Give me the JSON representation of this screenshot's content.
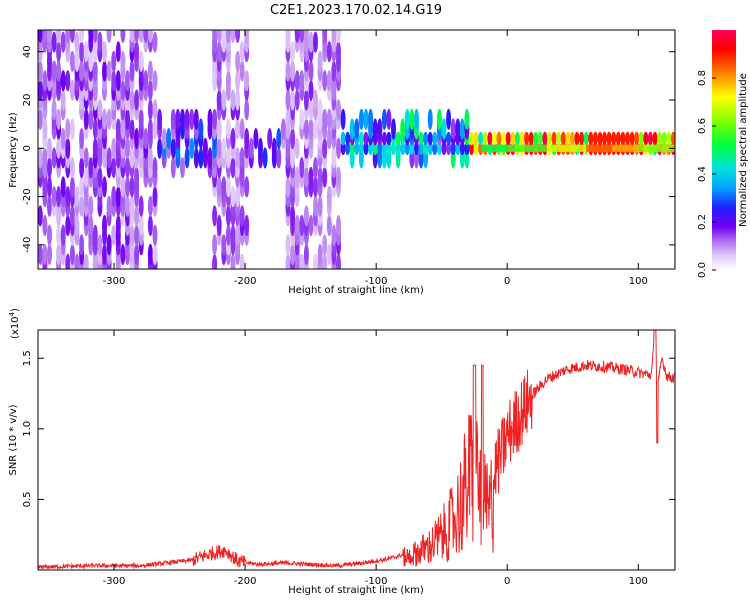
{
  "title": "C2E1.2023.170.02.14.G19",
  "chart_data": [
    {
      "type": "heatmap",
      "xlabel": "Height of straight line (km)",
      "ylabel": "Frequency (Hz)",
      "xlim": [
        -358,
        128
      ],
      "ylim": [
        -50,
        49
      ],
      "xticks": [
        -300,
        -200,
        -100,
        0,
        100
      ],
      "yticks": [
        -40,
        -20,
        0,
        20,
        40
      ],
      "colorbar": {
        "label": "Normalized spectral amplitude",
        "range": [
          0.0,
          1.0
        ],
        "ticks": [
          "0.0",
          "0.2",
          "0.4",
          "0.6",
          "0.8"
        ],
        "tick_values": [
          0.0,
          0.2,
          0.4,
          0.6,
          0.8
        ],
        "colormap": [
          "#ffffff",
          "#e0c8f8",
          "#b070f0",
          "#7000f0",
          "#2020ff",
          "#00a0ff",
          "#00e0e0",
          "#00ff40",
          "#80ff00",
          "#ffff00",
          "#ff8000",
          "#ff0000",
          "#ff0060"
        ]
      },
      "description_series": [
        {
          "x": [
            -358,
            -270
          ],
          "y_range": [
            -50,
            49
          ],
          "level": 0.2
        },
        {
          "x": [
            -270,
            -225
          ],
          "y_range": [
            -10,
            12
          ],
          "level": 0.32
        },
        {
          "x": [
            -225,
            -200
          ],
          "y_range": [
            -50,
            49
          ],
          "level": 0.18
        },
        {
          "x": [
            -200,
            -170
          ],
          "y_range": [
            -8,
            8
          ],
          "level": 0.3
        },
        {
          "x": [
            -170,
            -130
          ],
          "y_range": [
            -50,
            49
          ],
          "level": 0.18
        },
        {
          "x": [
            -130,
            -30
          ],
          "y_range": [
            -6,
            10
          ],
          "level": 0.45
        },
        {
          "x": [
            -30,
            128
          ],
          "y_range": [
            -2,
            3
          ],
          "level": 0.75
        }
      ]
    },
    {
      "type": "line",
      "xlabel": "Height of straight line (km)",
      "ylabel": "SNR (10 * v/v)",
      "y_exponent": "(x10",
      "y_exponent_power": "4",
      "y_exponent_close": ")",
      "xlim": [
        -358,
        128
      ],
      "ylim": [
        0.0,
        1.7
      ],
      "xticks": [
        -300,
        -200,
        -100,
        0,
        100
      ],
      "yticks": [
        "0.5",
        "1.0",
        "1.5"
      ],
      "ytick_values": [
        0.5,
        1.0,
        1.5
      ],
      "color": "#ee2222",
      "series": [
        {
          "x": [
            -358,
            -320,
            -280,
            -260,
            -240,
            -225,
            -215,
            -205,
            -190,
            -170,
            -150,
            -130,
            -110,
            -90,
            -75,
            -60,
            -50,
            -40,
            -32,
            -26,
            -22,
            -18,
            -14,
            -10,
            -5,
            0,
            10,
            20,
            30,
            45,
            60,
            75,
            90,
            100,
            110,
            112,
            115,
            118,
            122,
            128
          ],
          "y": [
            0.02,
            0.03,
            0.03,
            0.05,
            0.07,
            0.12,
            0.14,
            0.06,
            0.04,
            0.05,
            0.04,
            0.03,
            0.05,
            0.08,
            0.12,
            0.2,
            0.3,
            0.45,
            0.7,
            0.9,
            0.75,
            0.6,
            0.5,
            0.7,
            0.8,
            0.95,
            1.1,
            1.25,
            1.35,
            1.42,
            1.45,
            1.44,
            1.42,
            1.4,
            1.38,
            1.6,
            1.3,
            1.5,
            1.37,
            1.36
          ]
        }
      ]
    }
  ]
}
